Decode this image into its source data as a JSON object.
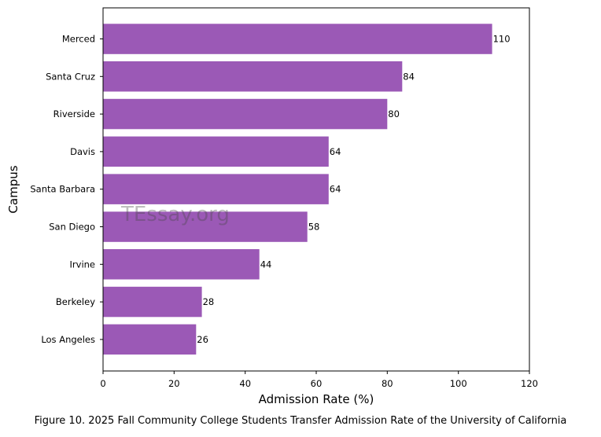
{
  "chart_data": {
    "type": "bar",
    "orientation": "horizontal",
    "categories": [
      "Merced",
      "Santa Cruz",
      "Riverside",
      "Davis",
      "Santa Barbara",
      "San Diego",
      "Irvine",
      "Berkeley",
      "Los Angeles"
    ],
    "values": [
      110,
      84,
      80,
      64,
      64,
      58,
      44,
      28,
      26
    ],
    "value_labels": [
      "110",
      "84",
      "80",
      "64",
      "64",
      "58",
      "44",
      "28",
      "26"
    ],
    "plot_values": [
      109.5,
      84.2,
      80,
      63.5,
      63.5,
      57.5,
      44,
      27.8,
      26.2
    ],
    "xlabel": "Admission Rate (%)",
    "ylabel": "Campus",
    "xlim": [
      0,
      120
    ],
    "xticks": [
      0,
      20,
      40,
      60,
      80,
      100,
      120
    ],
    "xtick_labels": [
      "0",
      "20",
      "40",
      "60",
      "80",
      "100",
      "120"
    ],
    "bar_color": "#9b59b6",
    "grid": false,
    "caption": "Figure 10. 2025 Fall Community College Students Transfer Admission Rate of the University of California"
  },
  "watermark": {
    "text": "TEssay.org",
    "color": "#444444"
  }
}
